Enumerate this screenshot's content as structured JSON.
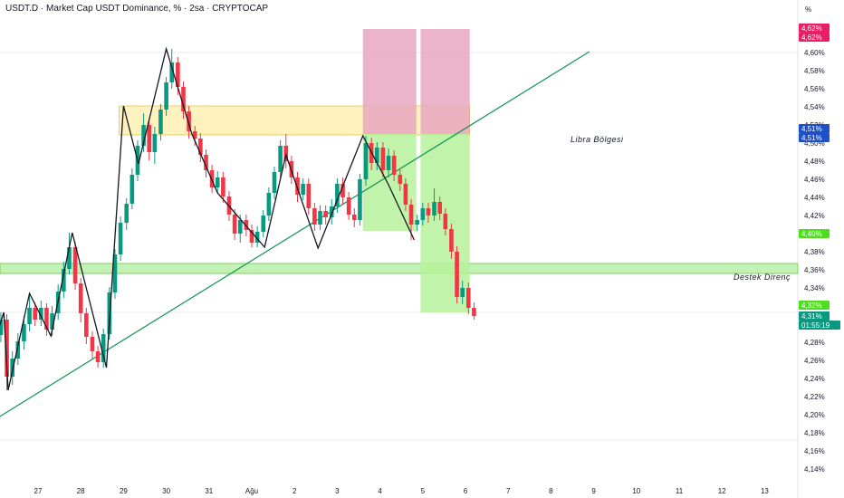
{
  "header": {
    "title": "USDT.D · Market Cap USDT Dominance, % · 2sa · CRYPTOCAP"
  },
  "chart_data": {
    "type": "candlestick",
    "y_unit": "%",
    "y_ticks": [
      "4,60%",
      "4,58%",
      "4,56%",
      "4,54%",
      "4,52%",
      "4,50%",
      "4,48%",
      "4,46%",
      "4,44%",
      "4,42%",
      "4,38%",
      "4,36%",
      "4,34%",
      "4,28%",
      "4,26%",
      "4,24%",
      "4,22%",
      "4,20%",
      "4,18%",
      "4,16%",
      "4,14%"
    ],
    "ylim": [
      4.135,
      4.655
    ],
    "x_ticks": [
      "27",
      "28",
      "29",
      "30",
      "31",
      "Ağu",
      "2",
      "3",
      "4",
      "5",
      "6",
      "7",
      "8",
      "9",
      "10",
      "11",
      "12",
      "13"
    ],
    "price_tags": [
      {
        "text": "4,62%",
        "value": 4.627,
        "color": "#e91e63"
      },
      {
        "text": "4,62%",
        "value": 4.617,
        "color": "#e91e63"
      },
      {
        "text": "4,51%",
        "value": 4.516,
        "color": "#1e50c8"
      },
      {
        "text": "4,51%",
        "value": 4.506,
        "color": "#1e50c8"
      },
      {
        "text": "4,40%",
        "value": 4.4,
        "color": "#4cdf1c"
      },
      {
        "text": "4,32%",
        "value": 4.321,
        "color": "#4cdf1c"
      },
      {
        "text": "4,31%",
        "value": 4.309,
        "color": "#089981"
      },
      {
        "text": "01:55:19",
        "value": 4.299,
        "color": "#089981"
      }
    ],
    "zone_labels": {
      "libra": "Libra Bölgesi",
      "destek": "Destek Direnç"
    },
    "zones": [
      {
        "name": "libra",
        "from_day": 28.9,
        "to_day": 37.1,
        "low": 4.509,
        "high": 4.541,
        "color": "#fff0b3"
      },
      {
        "name": "destek",
        "from_day": 24.0,
        "to_day": 40.2,
        "low": 4.356,
        "high": 4.367,
        "color": "#b8f0a8"
      },
      {
        "name": "short-1",
        "from_day": 34.6,
        "to_day": 35.85,
        "low": 4.51,
        "high": 4.626,
        "color": "#e9a7bf"
      },
      {
        "name": "short-2",
        "from_day": 35.95,
        "to_day": 37.1,
        "low": 4.51,
        "high": 4.626,
        "color": "#e9a7bf"
      },
      {
        "name": "target-1",
        "from_day": 34.6,
        "to_day": 35.85,
        "low": 4.403,
        "high": 4.51,
        "color": "#b6f29b"
      },
      {
        "name": "target-2",
        "from_day": 35.95,
        "to_day": 37.1,
        "low": 4.313,
        "high": 4.51,
        "color": "#b6f29b"
      }
    ],
    "trendline": {
      "from": [
        25.25,
        4.173
      ],
      "to": [
        39.9,
        4.601
      ]
    },
    "zigzag": [
      [
        25.25,
        4.173
      ],
      [
        26.2,
        4.313
      ],
      [
        26.3,
        4.227
      ],
      [
        26.8,
        4.334
      ],
      [
        27.3,
        4.287
      ],
      [
        27.8,
        4.401
      ],
      [
        28.6,
        4.252
      ],
      [
        29.0,
        4.541
      ],
      [
        29.35,
        4.477
      ],
      [
        30.0,
        4.604
      ],
      [
        30.6,
        4.51
      ],
      [
        31.2,
        4.445
      ],
      [
        32.3,
        4.385
      ],
      [
        32.8,
        4.487
      ],
      [
        33.55,
        4.384
      ],
      [
        34.6,
        4.508
      ],
      [
        35.2,
        4.454
      ],
      [
        35.8,
        4.393
      ]
    ],
    "candles": [
      [
        24.0,
        4.311,
        4.305,
        4.318,
        4.296
      ],
      [
        24.13,
        4.305,
        4.301,
        4.311,
        4.294
      ],
      [
        24.27,
        4.301,
        4.303,
        4.309,
        4.292
      ],
      [
        24.4,
        4.303,
        4.296,
        4.309,
        4.289
      ],
      [
        24.53,
        4.296,
        4.293,
        4.303,
        4.286
      ],
      [
        24.67,
        4.293,
        4.298,
        4.304,
        4.287
      ],
      [
        24.8,
        4.298,
        4.291,
        4.304,
        4.281
      ],
      [
        24.93,
        4.291,
        4.262,
        4.295,
        4.255
      ],
      [
        25.07,
        4.262,
        4.215,
        4.266,
        4.208
      ],
      [
        25.2,
        4.215,
        4.183,
        4.219,
        4.173
      ],
      [
        25.33,
        4.183,
        4.203,
        4.209,
        4.176
      ],
      [
        25.47,
        4.203,
        4.23,
        4.235,
        4.196
      ],
      [
        25.6,
        4.23,
        4.257,
        4.262,
        4.222
      ],
      [
        25.73,
        4.257,
        4.281,
        4.286,
        4.249
      ],
      [
        25.87,
        4.281,
        4.3,
        4.306,
        4.272
      ],
      [
        26.0,
        4.3,
        4.288,
        4.306,
        4.281
      ],
      [
        26.13,
        4.288,
        4.305,
        4.313,
        4.28
      ],
      [
        26.27,
        4.305,
        4.242,
        4.311,
        4.227
      ],
      [
        26.4,
        4.242,
        4.262,
        4.27,
        4.233
      ],
      [
        26.53,
        4.262,
        4.281,
        4.29,
        4.255
      ],
      [
        26.67,
        4.281,
        4.3,
        4.309,
        4.272
      ],
      [
        26.8,
        4.3,
        4.318,
        4.334,
        4.292
      ],
      [
        26.93,
        4.318,
        4.305,
        4.324,
        4.298
      ],
      [
        27.07,
        4.305,
        4.318,
        4.326,
        4.298
      ],
      [
        27.2,
        4.318,
        4.294,
        4.323,
        4.287
      ],
      [
        27.33,
        4.294,
        4.312,
        4.32,
        4.287
      ],
      [
        27.47,
        4.312,
        4.336,
        4.344,
        4.305
      ],
      [
        27.6,
        4.336,
        4.361,
        4.369,
        4.329
      ],
      [
        27.73,
        4.361,
        4.385,
        4.401,
        4.355
      ],
      [
        27.87,
        4.385,
        4.345,
        4.391,
        4.338
      ],
      [
        28.0,
        4.345,
        4.312,
        4.351,
        4.302
      ],
      [
        28.13,
        4.312,
        4.286,
        4.318,
        4.278
      ],
      [
        28.27,
        4.286,
        4.27,
        4.292,
        4.262
      ],
      [
        28.4,
        4.27,
        4.258,
        4.276,
        4.252
      ],
      [
        28.53,
        4.258,
        4.289,
        4.295,
        4.252
      ],
      [
        28.67,
        4.289,
        4.335,
        4.341,
        4.283
      ],
      [
        28.8,
        4.335,
        4.377,
        4.383,
        4.328
      ],
      [
        28.93,
        4.377,
        4.412,
        4.419,
        4.37
      ],
      [
        29.07,
        4.412,
        4.433,
        4.439,
        4.404
      ],
      [
        29.2,
        4.433,
        4.465,
        4.472,
        4.427
      ],
      [
        29.33,
        4.465,
        4.497,
        4.503,
        4.458
      ],
      [
        29.47,
        4.497,
        4.52,
        4.533,
        4.49
      ],
      [
        29.6,
        4.52,
        4.49,
        4.525,
        4.481
      ],
      [
        29.73,
        4.49,
        4.51,
        4.518,
        4.477
      ],
      [
        29.87,
        4.51,
        4.537,
        4.543,
        4.503
      ],
      [
        30.0,
        4.537,
        4.567,
        4.573,
        4.53
      ],
      [
        30.13,
        4.567,
        4.589,
        4.604,
        4.56
      ],
      [
        30.27,
        4.589,
        4.562,
        4.595,
        4.553
      ],
      [
        30.4,
        4.562,
        4.535,
        4.568,
        4.527
      ],
      [
        30.53,
        4.535,
        4.513,
        4.541,
        4.505
      ],
      [
        30.67,
        4.513,
        4.505,
        4.519,
        4.497
      ],
      [
        30.8,
        4.505,
        4.487,
        4.511,
        4.479
      ],
      [
        30.93,
        4.487,
        4.47,
        4.493,
        4.462
      ],
      [
        31.07,
        4.47,
        4.451,
        4.476,
        4.445
      ],
      [
        31.2,
        4.451,
        4.462,
        4.469,
        4.445
      ],
      [
        31.33,
        4.462,
        4.441,
        4.468,
        4.434
      ],
      [
        31.47,
        4.441,
        4.421,
        4.447,
        4.414
      ],
      [
        31.6,
        4.421,
        4.4,
        4.427,
        4.393
      ],
      [
        31.73,
        4.4,
        4.415,
        4.421,
        4.39
      ],
      [
        31.87,
        4.415,
        4.404,
        4.421,
        4.397
      ],
      [
        32.0,
        4.404,
        4.39,
        4.41,
        4.385
      ],
      [
        32.13,
        4.39,
        4.402,
        4.408,
        4.385
      ],
      [
        32.27,
        4.402,
        4.42,
        4.426,
        4.396
      ],
      [
        32.4,
        4.42,
        4.445,
        4.451,
        4.414
      ],
      [
        32.53,
        4.445,
        4.468,
        4.474,
        4.438
      ],
      [
        32.67,
        4.468,
        4.497,
        4.503,
        4.462
      ],
      [
        32.8,
        4.497,
        4.48,
        4.51,
        4.472
      ],
      [
        32.93,
        4.48,
        4.462,
        4.486,
        4.455
      ],
      [
        33.07,
        4.462,
        4.443,
        4.468,
        4.435
      ],
      [
        33.2,
        4.443,
        4.455,
        4.461,
        4.437
      ],
      [
        33.33,
        4.455,
        4.428,
        4.461,
        4.421
      ],
      [
        33.47,
        4.428,
        4.41,
        4.434,
        4.403
      ],
      [
        33.6,
        4.41,
        4.425,
        4.431,
        4.404
      ],
      [
        33.73,
        4.425,
        4.418,
        4.431,
        4.41
      ],
      [
        33.87,
        4.418,
        4.43,
        4.438,
        4.41
      ],
      [
        34.0,
        4.43,
        4.455,
        4.461,
        4.423
      ],
      [
        34.13,
        4.455,
        4.44,
        4.462,
        4.433
      ],
      [
        34.27,
        4.44,
        4.421,
        4.446,
        4.415
      ],
      [
        34.4,
        4.421,
        4.415,
        4.428,
        4.407
      ],
      [
        34.53,
        4.415,
        4.46,
        4.466,
        4.409
      ],
      [
        34.67,
        4.46,
        4.5,
        4.508,
        4.453
      ],
      [
        34.8,
        4.5,
        4.478,
        4.506,
        4.47
      ],
      [
        34.93,
        4.478,
        4.495,
        4.501,
        4.47
      ],
      [
        35.07,
        4.495,
        4.47,
        4.501,
        4.462
      ],
      [
        35.2,
        4.47,
        4.486,
        4.494,
        4.462
      ],
      [
        35.33,
        4.486,
        4.465,
        4.492,
        4.458
      ],
      [
        35.47,
        4.465,
        4.455,
        4.471,
        4.447
      ],
      [
        35.6,
        4.455,
        4.432,
        4.461,
        4.425
      ],
      [
        35.73,
        4.432,
        4.41,
        4.438,
        4.393
      ],
      [
        35.87,
        4.41,
        4.415,
        4.421,
        4.403
      ],
      [
        36.0,
        4.415,
        4.428,
        4.434,
        4.409
      ],
      [
        36.13,
        4.428,
        4.42,
        4.434,
        4.412
      ],
      [
        36.27,
        4.42,
        4.435,
        4.45,
        4.414
      ],
      [
        36.4,
        4.435,
        4.422,
        4.441,
        4.415
      ],
      [
        36.53,
        4.422,
        4.405,
        4.428,
        4.398
      ],
      [
        36.67,
        4.405,
        4.38,
        4.411,
        4.372
      ],
      [
        36.8,
        4.38,
        4.33,
        4.386,
        4.323
      ],
      [
        36.93,
        4.33,
        4.34,
        4.348,
        4.322
      ],
      [
        37.07,
        4.34,
        4.318,
        4.346,
        4.311
      ],
      [
        37.2,
        4.318,
        4.309,
        4.324,
        4.305
      ]
    ]
  }
}
